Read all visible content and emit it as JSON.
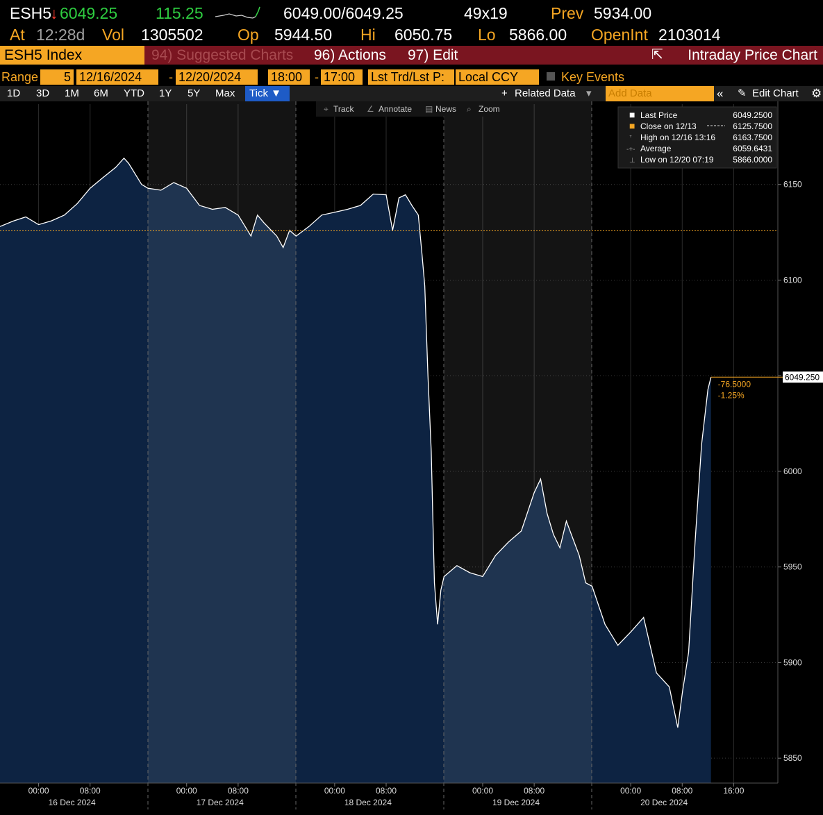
{
  "header": {
    "ticker": "ESH5",
    "last": "6049.25",
    "change": "115.25",
    "bid_ask": "6049.00/6049.25",
    "size": "49x19",
    "prev_label": "Prev",
    "prev": "5934.00",
    "at_label": "At",
    "time": "12:28d",
    "vol_label": "Vol",
    "vol": "1305502",
    "op_label": "Op",
    "op": "5944.50",
    "hi_label": "Hi",
    "hi": "6050.75",
    "lo_label": "Lo",
    "lo": "5866.00",
    "oi_label": "OpenInt",
    "oi": "2103014"
  },
  "toolbar": {
    "security": "ESH5 Index",
    "suggested": "94) Suggested Charts",
    "actions": "96) Actions",
    "edit": "97) Edit",
    "title": "Intraday Price Chart"
  },
  "range": {
    "label": "Range",
    "count": "5",
    "start": "12/16/2024",
    "dash": "-",
    "end": "12/20/2024",
    "start_time": "18:00",
    "dash2": "-",
    "end_time": "17:00",
    "field": "Lst Trd/Lst P:",
    "currency": "Local CCY",
    "events": "Key Events"
  },
  "periods": [
    "1D",
    "3D",
    "1M",
    "6M",
    "YTD",
    "1Y",
    "5Y",
    "Max",
    "Tick"
  ],
  "related": "Related Data",
  "add_data": "Add Data",
  "edit_chart": "Edit Chart",
  "chart_tools": [
    "Track",
    "Annotate",
    "News",
    "Zoom"
  ],
  "chart_data": {
    "type": "line",
    "color": "#ffffff",
    "area_color": "#0d2342",
    "x": [
      "2024-12-15 18:00",
      "2024-12-15 20:00",
      "2024-12-15 22:00",
      "2024-12-16 00:00",
      "2024-12-16 02:00",
      "2024-12-16 04:00",
      "2024-12-16 06:00",
      "2024-12-16 08:00",
      "2024-12-16 10:00",
      "2024-12-16 12:00",
      "2024-12-16 13:16",
      "2024-12-16 14:00",
      "2024-12-16 16:00",
      "2024-12-16 18:00",
      "2024-12-16 20:00",
      "2024-12-16 22:00",
      "2024-12-17 00:00",
      "2024-12-17 02:00",
      "2024-12-17 04:00",
      "2024-12-17 06:00",
      "2024-12-17 08:00",
      "2024-12-17 10:00",
      "2024-12-17 11:00",
      "2024-12-17 12:00",
      "2024-12-17 14:00",
      "2024-12-17 15:00",
      "2024-12-17 16:00",
      "2024-12-17 18:00",
      "2024-12-17 20:00",
      "2024-12-17 22:00",
      "2024-12-18 00:00",
      "2024-12-18 02:00",
      "2024-12-18 04:00",
      "2024-12-18 06:00",
      "2024-12-18 08:00",
      "2024-12-18 09:00",
      "2024-12-18 10:00",
      "2024-12-18 11:00",
      "2024-12-18 12:00",
      "2024-12-18 13:00",
      "2024-12-18 13:30",
      "2024-12-18 14:00",
      "2024-12-18 14:30",
      "2024-12-18 15:00",
      "2024-12-18 15:30",
      "2024-12-18 16:00",
      "2024-12-18 16:30",
      "2024-12-18 18:00",
      "2024-12-18 20:00",
      "2024-12-18 22:00",
      "2024-12-19 00:00",
      "2024-12-19 02:00",
      "2024-12-19 04:00",
      "2024-12-19 06:00",
      "2024-12-19 08:00",
      "2024-12-19 09:00",
      "2024-12-19 10:00",
      "2024-12-19 11:00",
      "2024-12-19 12:00",
      "2024-12-19 13:00",
      "2024-12-19 14:00",
      "2024-12-19 15:00",
      "2024-12-19 16:00",
      "2024-12-19 18:00",
      "2024-12-19 20:00",
      "2024-12-19 22:00",
      "2024-12-20 00:00",
      "2024-12-20 02:00",
      "2024-12-20 04:00",
      "2024-12-20 06:00",
      "2024-12-20 07:19",
      "2024-12-20 08:00",
      "2024-12-20 09:00",
      "2024-12-20 10:00",
      "2024-12-20 11:00",
      "2024-12-20 12:00",
      "2024-12-20 12:28"
    ],
    "values": [
      6128,
      6130.8,
      6133,
      6129,
      6131,
      6134,
      6140,
      6148,
      6153.6,
      6159,
      6163.75,
      6161,
      6150,
      6148,
      6147,
      6151,
      6148,
      6139,
      6137,
      6138,
      6134,
      6123,
      6134,
      6130,
      6123,
      6117,
      6126,
      6123,
      6128,
      6134,
      6135.5,
      6137,
      6139,
      6145,
      6144.6,
      6126,
      6143,
      6144.6,
      6139,
      6134,
      6116,
      6097,
      6050,
      6010.5,
      5941.7,
      5920,
      5938,
      5945,
      5950.7,
      5947,
      5945,
      5956,
      5963,
      5968.8,
      5988.8,
      5996,
      5978,
      5967,
      5960,
      5974,
      5965,
      5956,
      5941.7,
      5939.9,
      5920,
      5909,
      5916,
      5923.6,
      5894.6,
      5887.3,
      5866,
      5883.7,
      5905.4,
      5963,
      6013.8,
      6042.8,
      6049.25
    ],
    "xlim": [
      "2024-12-15 18:00",
      "2024-12-20 23:00"
    ],
    "ylim": [
      5837,
      6192
    ],
    "yticks": [
      5850,
      5900,
      5950,
      6000,
      6050,
      6100,
      6150
    ],
    "xticks": [
      {
        "value": "2024-12-16 00:00",
        "label": "00:00"
      },
      {
        "value": "2024-12-16 08:00",
        "label": "08:00"
      },
      {
        "value": "2024-12-17 00:00",
        "label": "00:00"
      },
      {
        "value": "2024-12-17 08:00",
        "label": "08:00"
      },
      {
        "value": "2024-12-18 00:00",
        "label": "00:00"
      },
      {
        "value": "2024-12-18 08:00",
        "label": "08:00"
      },
      {
        "value": "2024-12-19 00:00",
        "label": "00:00"
      },
      {
        "value": "2024-12-19 08:00",
        "label": "08:00"
      },
      {
        "value": "2024-12-20 00:00",
        "label": "00:00"
      },
      {
        "value": "2024-12-20 08:00",
        "label": "08:00"
      },
      {
        "value": "2024-12-20 16:00",
        "label": "16:00"
      }
    ],
    "date_labels": [
      {
        "value": "2024-12-16 00:00",
        "label": "16 Dec 2024"
      },
      {
        "value": "2024-12-17 00:00",
        "label": "17 Dec 2024"
      },
      {
        "value": "2024-12-18 00:00",
        "label": "18 Dec 2024"
      },
      {
        "value": "2024-12-19 00:00",
        "label": "19 Dec 2024"
      },
      {
        "value": "2024-12-20 00:00",
        "label": "20 Dec 2024"
      }
    ],
    "grid": true,
    "legend": [
      {
        "name": "Last Price",
        "value": 6049.25,
        "label": "6049.2500",
        "color": "#ffffff"
      },
      {
        "name": "Close on 12/13",
        "value": 6125.75,
        "label": "6125.7500",
        "color": "#f5a623"
      },
      {
        "name": "High on 12/16 13:16",
        "value": 6163.75,
        "label": "6163.7500"
      },
      {
        "name": "Average",
        "value": 6059.6431,
        "label": "6059.6431"
      },
      {
        "name": "Low on 12/20 07:19",
        "value": 5866,
        "label": "5866.0000"
      }
    ],
    "last_tag": {
      "value": 6049.25,
      "label": "6049.250"
    },
    "annotations": [
      "-76.5000",
      "-1.25%"
    ]
  }
}
